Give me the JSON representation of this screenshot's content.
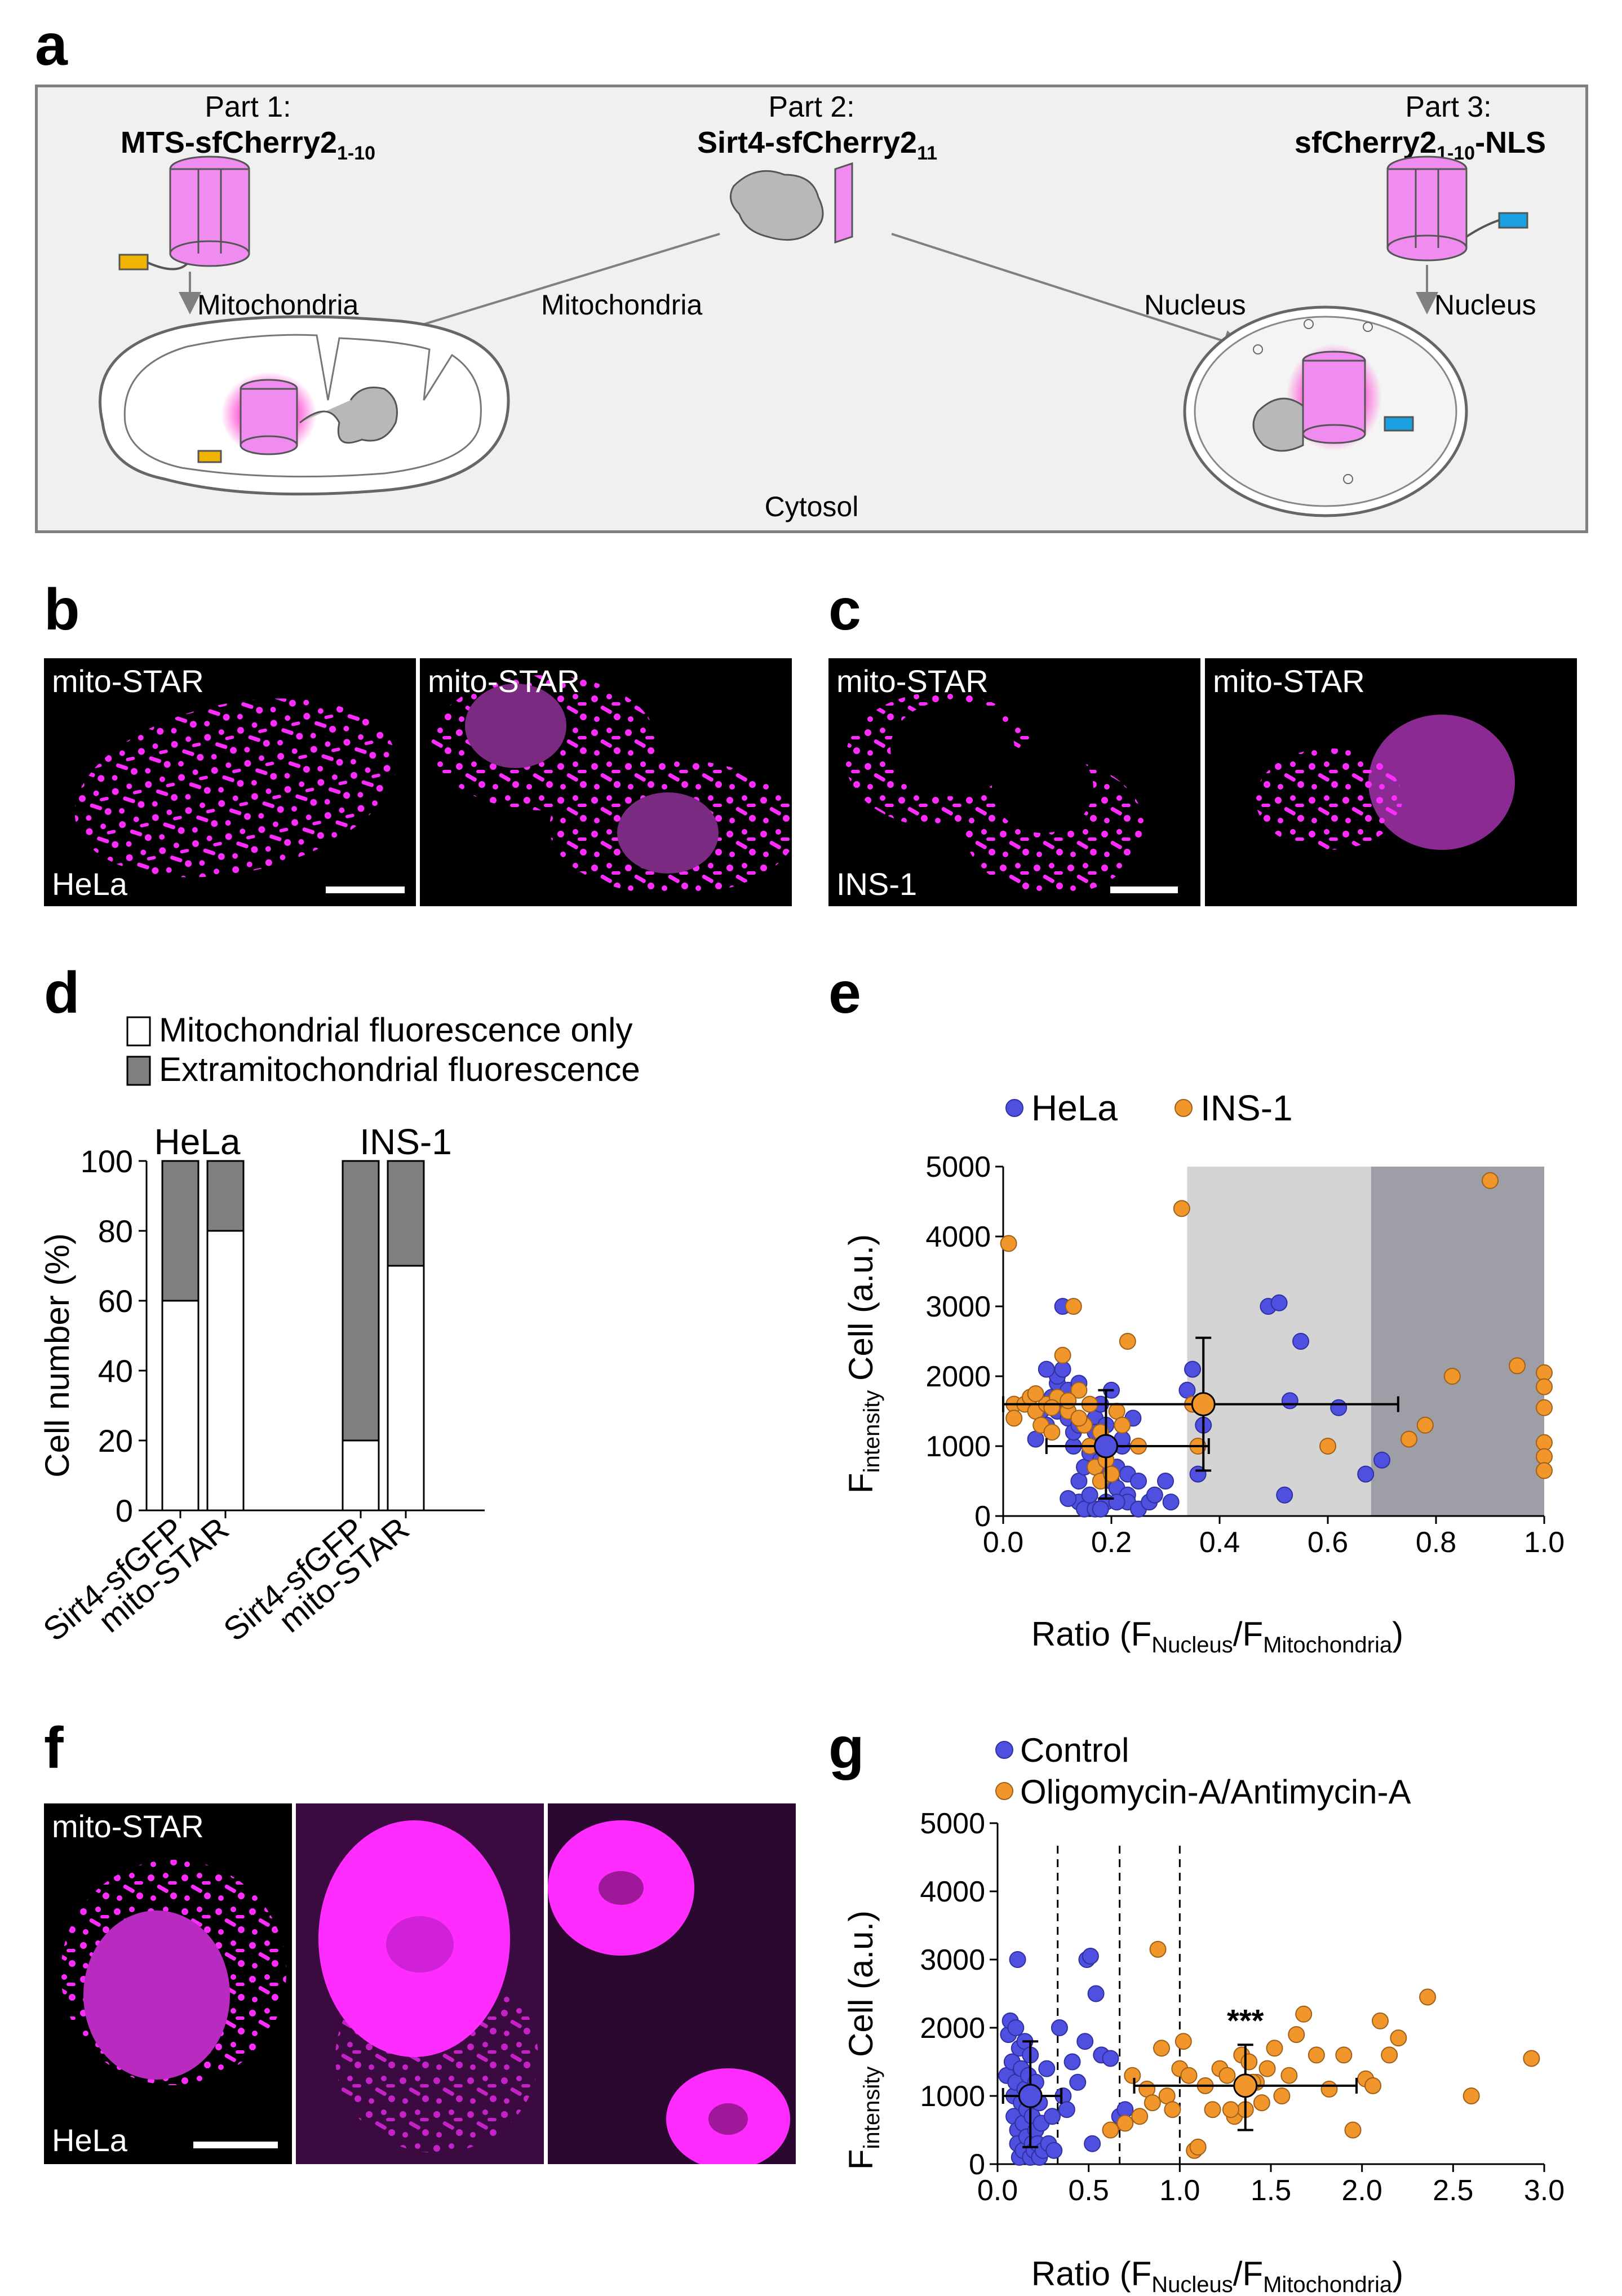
{
  "panels": {
    "a": "a",
    "b": "b",
    "c": "c",
    "d": "d",
    "e": "e",
    "f": "f",
    "g": "g"
  },
  "schematic": {
    "part1_title": "Part 1:",
    "part1_name": "MTS-sfCherry2",
    "part1_sub": "1-10",
    "part2_title": "Part 2:",
    "part2_name": "Sirt4-sfCherry2",
    "part2_sub": "11",
    "part3_title": "Part 3:",
    "part3_name": "sfCherry2",
    "part3_sub": "1-10",
    "part3_suffix": "-NLS",
    "arrow_mito_left": "Mitochondria",
    "arrow_mito_center": "Mitochondria",
    "arrow_nucleus_center": "Nucleus",
    "arrow_nucleus_right": "Nucleus",
    "cytosol": "Cytosol",
    "colors": {
      "fluor": "#f08cf0",
      "glow": "#ff3fd0",
      "mts_tag": "#f0b400",
      "nls_tag": "#1aa0e0"
    }
  },
  "micrographs": {
    "b1_label": "mito-STAR",
    "b2_label": "mito-STAR",
    "b_cell": "HeLa",
    "c1_label": "mito-STAR",
    "c2_label": "mito-STAR",
    "c_cell": "INS-1",
    "f_label": "mito-STAR",
    "f_cell": "HeLa"
  },
  "chart_data": [
    {
      "panel": "d",
      "type": "bar",
      "stacked": true,
      "legend": [
        "Mitochondrial fluorescence only",
        "Extramitochondrial fluorescence"
      ],
      "group_labels": [
        "HeLa",
        "INS-1"
      ],
      "categories": [
        "Sirt4-sfGFP",
        "mito-STAR",
        "Sirt4-sfGFP",
        "mito-STAR"
      ],
      "series": [
        {
          "name": "Mitochondrial fluorescence only",
          "color": "#ffffff",
          "values": [
            60,
            80,
            20,
            70
          ]
        },
        {
          "name": "Extramitochondrial fluorescence",
          "color": "#808080",
          "values": [
            40,
            20,
            80,
            30
          ]
        }
      ],
      "ylabel": "Cell number (%)",
      "ylim": [
        0,
        100
      ],
      "yticks": [
        "0",
        "20",
        "40",
        "60",
        "80",
        "100"
      ]
    },
    {
      "panel": "e",
      "type": "scatter",
      "legend": [
        "HeLa",
        "INS-1"
      ],
      "legend_colors": [
        "#4f4fe0",
        "#f0962a"
      ],
      "xlabel": "Ratio (F",
      "xlabel_sub1": "Nucleus",
      "xlabel_mid": "/F",
      "xlabel_sub2": "Mitochondria",
      "xlabel_end": ")",
      "ylabel_pre": "F",
      "ylabel_sub": "intensity",
      "ylabel_post": " Cell (a.u.)",
      "xlim": [
        0,
        1.0
      ],
      "ylim": [
        0,
        5000
      ],
      "xticks": [
        "0.0",
        "0.2",
        "0.4",
        "0.6",
        "0.8",
        "1.0"
      ],
      "yticks": [
        "0",
        "1000",
        "2000",
        "3000",
        "4000",
        "5000"
      ],
      "regions": [
        {
          "x0": 0.34,
          "x1": 0.68,
          "color": "#d4d4d4"
        },
        {
          "x0": 0.68,
          "x1": 1.0,
          "color": "#9e9ea6"
        }
      ],
      "series": [
        {
          "name": "HeLa",
          "color": "#4f4fe0",
          "points": [
            [
              0.06,
              1100
            ],
            [
              0.07,
              1500
            ],
            [
              0.08,
              1300
            ],
            [
              0.09,
              1700
            ],
            [
              0.1,
              1900
            ],
            [
              0.1,
              2000
            ],
            [
              0.1,
              1500
            ],
            [
              0.11,
              1600
            ],
            [
              0.11,
              2100
            ],
            [
              0.12,
              1800
            ],
            [
              0.12,
              1400
            ],
            [
              0.13,
              1000
            ],
            [
              0.13,
              1200
            ],
            [
              0.14,
              1300
            ],
            [
              0.14,
              500
            ],
            [
              0.14,
              200
            ],
            [
              0.15,
              700
            ],
            [
              0.15,
              100
            ],
            [
              0.16,
              900
            ],
            [
              0.16,
              300
            ],
            [
              0.17,
              100
            ],
            [
              0.17,
              1400
            ],
            [
              0.18,
              800
            ],
            [
              0.18,
              1600
            ],
            [
              0.19,
              600
            ],
            [
              0.19,
              1300
            ],
            [
              0.19,
              200
            ],
            [
              0.2,
              500
            ],
            [
              0.2,
              1800
            ],
            [
              0.21,
              700
            ],
            [
              0.21,
              400
            ],
            [
              0.22,
              1000
            ],
            [
              0.22,
              1100
            ],
            [
              0.23,
              300
            ],
            [
              0.23,
              600
            ],
            [
              0.23,
              200
            ],
            [
              0.24,
              1400
            ],
            [
              0.25,
              100
            ],
            [
              0.25,
              500
            ],
            [
              0.27,
              200
            ],
            [
              0.28,
              300
            ],
            [
              0.3,
              500
            ],
            [
              0.31,
              200
            ],
            [
              0.34,
              1800
            ],
            [
              0.35,
              2100
            ],
            [
              0.36,
              600
            ],
            [
              0.37,
              1300
            ],
            [
              0.49,
              3000
            ],
            [
              0.51,
              3050
            ],
            [
              0.52,
              300
            ],
            [
              0.53,
              1650
            ],
            [
              0.55,
              2500
            ],
            [
              0.62,
              1550
            ],
            [
              0.67,
              600
            ],
            [
              0.7,
              800
            ],
            [
              0.16,
              300
            ],
            [
              0.21,
              200
            ],
            [
              0.18,
              100
            ],
            [
              0.12,
              250
            ],
            [
              0.08,
              2100
            ],
            [
              0.14,
              1900
            ],
            [
              0.17,
              1200
            ],
            [
              0.11,
              3000
            ]
          ]
        },
        {
          "name": "INS-1",
          "color": "#f0962a",
          "points": [
            [
              0.01,
              3900
            ],
            [
              0.02,
              1600
            ],
            [
              0.02,
              1400
            ],
            [
              0.04,
              1600
            ],
            [
              0.05,
              1700
            ],
            [
              0.06,
              1500
            ],
            [
              0.07,
              1300
            ],
            [
              0.08,
              1600
            ],
            [
              0.09,
              1200
            ],
            [
              0.1,
              1700
            ],
            [
              0.11,
              2300
            ],
            [
              0.12,
              1500
            ],
            [
              0.13,
              3000
            ],
            [
              0.14,
              1800
            ],
            [
              0.15,
              1300
            ],
            [
              0.16,
              1600
            ],
            [
              0.17,
              700
            ],
            [
              0.18,
              500
            ],
            [
              0.18,
              1200
            ],
            [
              0.19,
              800
            ],
            [
              0.2,
              600
            ],
            [
              0.21,
              1500
            ],
            [
              0.22,
              1300
            ],
            [
              0.23,
              2500
            ],
            [
              0.25,
              1000
            ],
            [
              0.33,
              4400
            ],
            [
              0.35,
              1600
            ],
            [
              0.36,
              1000
            ],
            [
              0.6,
              1000
            ],
            [
              0.75,
              1100
            ],
            [
              0.78,
              1300
            ],
            [
              0.83,
              2000
            ],
            [
              0.9,
              4800
            ],
            [
              0.95,
              2150
            ],
            [
              1.0,
              2050
            ],
            [
              1.0,
              1850
            ],
            [
              1.0,
              1550
            ],
            [
              1.0,
              1050
            ],
            [
              1.0,
              850
            ],
            [
              1.0,
              650
            ],
            [
              0.14,
              1400
            ],
            [
              0.09,
              1550
            ],
            [
              0.06,
              1750
            ],
            [
              0.12,
              1650
            ],
            [
              0.16,
              1000
            ]
          ]
        }
      ],
      "errorbars": [
        {
          "x": 0.19,
          "y": 1000,
          "xerr": [
            0.08,
            0.38
          ],
          "yerr": [
            250,
            1800
          ],
          "color": "#000000",
          "marker": "#4f4fe0"
        },
        {
          "x": 0.37,
          "y": 1600,
          "xerr": [
            0.0,
            0.73
          ],
          "yerr": [
            650,
            2550
          ],
          "color": "#000000",
          "marker": "#f0962a"
        }
      ]
    },
    {
      "panel": "g",
      "type": "scatter",
      "legend": [
        "Control",
        "Oligomycin-A/Antimycin-A"
      ],
      "legend_colors": [
        "#4f4fe0",
        "#f0962a"
      ],
      "xlabel": "Ratio (F",
      "xlabel_sub1": "Nucleus",
      "xlabel_mid": "/F",
      "xlabel_sub2": "Mitochondria",
      "xlabel_end": ")",
      "ylabel_pre": "F",
      "ylabel_sub": "intensity",
      "ylabel_post": " Cell (a.u.)",
      "xlim": [
        0,
        3.0
      ],
      "ylim": [
        0,
        5000
      ],
      "xticks": [
        "0.0",
        "0.5",
        "1.0",
        "1.5",
        "2.0",
        "2.5",
        "3.0"
      ],
      "yticks": [
        "0",
        "1000",
        "2000",
        "3000",
        "4000",
        "5000"
      ],
      "vlines": [
        0.33,
        0.67,
        1.0
      ],
      "annotation": "***",
      "series": [
        {
          "name": "Control",
          "color": "#4f4fe0",
          "points": [
            [
              0.05,
              1300
            ],
            [
              0.06,
              1900
            ],
            [
              0.07,
              2100
            ],
            [
              0.08,
              1500
            ],
            [
              0.09,
              1000
            ],
            [
              0.09,
              700
            ],
            [
              0.1,
              2000
            ],
            [
              0.1,
              1200
            ],
            [
              0.11,
              500
            ],
            [
              0.11,
              300
            ],
            [
              0.12,
              1700
            ],
            [
              0.12,
              100
            ],
            [
              0.13,
              900
            ],
            [
              0.13,
              1400
            ],
            [
              0.14,
              600
            ],
            [
              0.14,
              200
            ],
            [
              0.15,
              1100
            ],
            [
              0.15,
              1800
            ],
            [
              0.16,
              400
            ],
            [
              0.16,
              800
            ],
            [
              0.17,
              1300
            ],
            [
              0.18,
              100
            ],
            [
              0.18,
              1600
            ],
            [
              0.19,
              700
            ],
            [
              0.19,
              300
            ],
            [
              0.2,
              1000
            ],
            [
              0.2,
              200
            ],
            [
              0.21,
              500
            ],
            [
              0.21,
              1200
            ],
            [
              0.22,
              300
            ],
            [
              0.23,
              900
            ],
            [
              0.23,
              100
            ],
            [
              0.24,
              600
            ],
            [
              0.25,
              200
            ],
            [
              0.27,
              1400
            ],
            [
              0.28,
              300
            ],
            [
              0.3,
              700
            ],
            [
              0.31,
              200
            ],
            [
              0.34,
              2000
            ],
            [
              0.36,
              1000
            ],
            [
              0.38,
              800
            ],
            [
              0.41,
              1500
            ],
            [
              0.44,
              1200
            ],
            [
              0.48,
              1800
            ],
            [
              0.49,
              3000
            ],
            [
              0.51,
              3050
            ],
            [
              0.52,
              300
            ],
            [
              0.54,
              2500
            ],
            [
              0.57,
              1600
            ],
            [
              0.62,
              1550
            ],
            [
              0.67,
              700
            ],
            [
              0.7,
              800
            ],
            [
              0.11,
              3000
            ]
          ]
        },
        {
          "name": "Oligomycin-A/Antimycin-A",
          "color": "#f0962a",
          "points": [
            [
              0.62,
              500
            ],
            [
              0.7,
              600
            ],
            [
              0.74,
              1300
            ],
            [
              0.78,
              700
            ],
            [
              0.82,
              1100
            ],
            [
              0.85,
              900
            ],
            [
              0.88,
              3150
            ],
            [
              0.9,
              1700
            ],
            [
              0.93,
              1000
            ],
            [
              0.96,
              800
            ],
            [
              1.0,
              1400
            ],
            [
              1.02,
              1800
            ],
            [
              1.05,
              1300
            ],
            [
              1.08,
              200
            ],
            [
              1.1,
              250
            ],
            [
              1.14,
              1150
            ],
            [
              1.18,
              800
            ],
            [
              1.22,
              1400
            ],
            [
              1.26,
              1300
            ],
            [
              1.3,
              700
            ],
            [
              1.34,
              1600
            ],
            [
              1.36,
              800
            ],
            [
              1.38,
              1500
            ],
            [
              1.42,
              1200
            ],
            [
              1.45,
              900
            ],
            [
              1.48,
              1400
            ],
            [
              1.52,
              1700
            ],
            [
              1.56,
              1000
            ],
            [
              1.6,
              1300
            ],
            [
              1.64,
              1900
            ],
            [
              1.68,
              2200
            ],
            [
              1.75,
              1600
            ],
            [
              1.82,
              1100
            ],
            [
              1.9,
              1600
            ],
            [
              1.95,
              500
            ],
            [
              2.02,
              1250
            ],
            [
              2.06,
              1150
            ],
            [
              2.1,
              2100
            ],
            [
              2.15,
              1600
            ],
            [
              2.2,
              1850
            ],
            [
              2.36,
              2450
            ],
            [
              2.6,
              1000
            ],
            [
              2.93,
              1550
            ],
            [
              1.28,
              800
            ],
            [
              1.4,
              1200
            ]
          ]
        }
      ],
      "errorbars": [
        {
          "x": 0.18,
          "y": 1000,
          "xerr": [
            0.03,
            0.35
          ],
          "yerr": [
            250,
            1800
          ],
          "color": "#000000",
          "marker": "#4f4fe0"
        },
        {
          "x": 1.36,
          "y": 1150,
          "xerr": [
            0.75,
            1.97
          ],
          "yerr": [
            500,
            1750
          ],
          "color": "#000000",
          "marker": "#f0962a"
        }
      ]
    }
  ]
}
